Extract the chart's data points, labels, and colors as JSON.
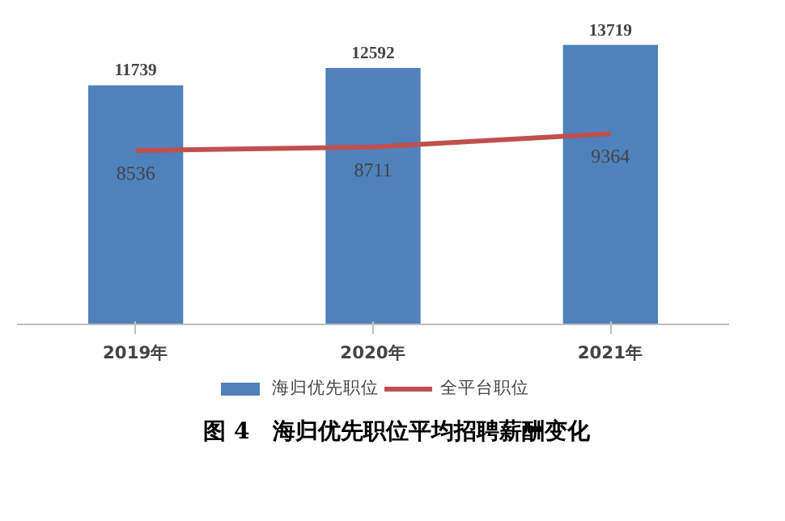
{
  "chart_data": {
    "type": "bar",
    "title": "图 4　海归优先职位平均招聘薪酬变化",
    "categories": [
      "2019年",
      "2020年",
      "2021年"
    ],
    "series": [
      {
        "name": "海归优先职位",
        "color": "#4f81bd",
        "values": [
          11739,
          12592,
          13719
        ]
      },
      {
        "name": "全平台职位",
        "type": "line",
        "color": "#c0504d",
        "values": [
          8536,
          8711,
          9364
        ]
      }
    ],
    "tick_labels": "x",
    "data_labels": true,
    "legend": "bottom"
  }
}
